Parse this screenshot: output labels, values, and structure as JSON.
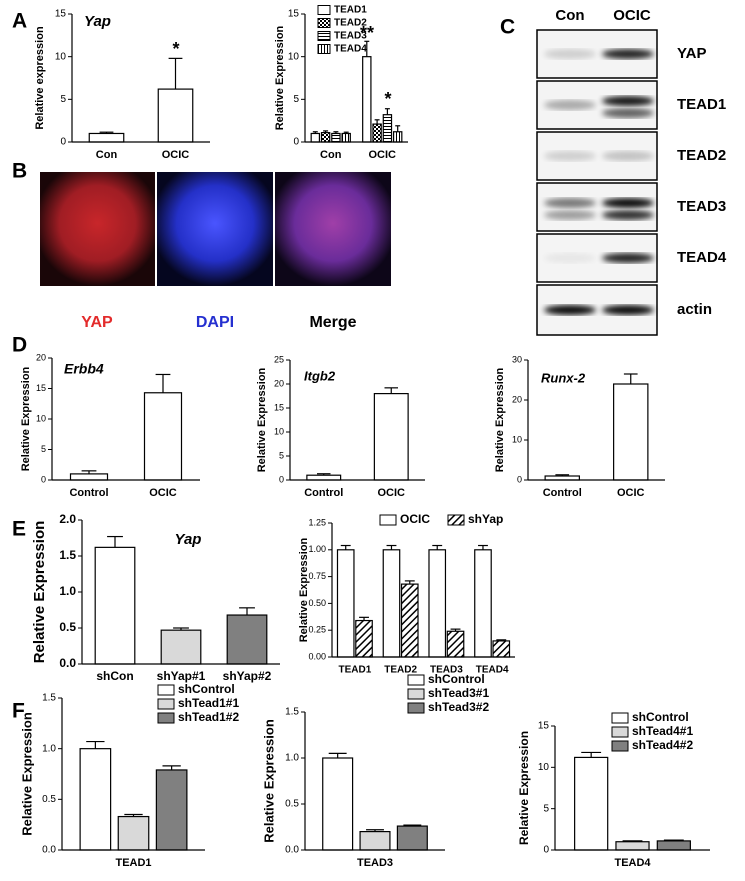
{
  "panel_labels": [
    "A",
    "B",
    "C",
    "D",
    "E",
    "F"
  ],
  "chart_data": [
    {
      "type": "bar",
      "title": "Yap",
      "ylabel": "Relative expression",
      "categories": [
        "Con",
        "OCIC"
      ],
      "values": [
        1,
        6.2
      ],
      "errors": [
        0.15,
        3.6
      ],
      "color": "#ffffff",
      "ylim": [
        0,
        15
      ],
      "yticks": [
        0,
        5,
        10,
        15
      ],
      "annotations": [
        "*"
      ]
    },
    {
      "type": "bar",
      "ylabel": "Relative Expression",
      "categories": [
        "Con",
        "OCIC"
      ],
      "series": [
        {
          "name": "TEAD1",
          "color": "#ffffff",
          "pattern": "none",
          "values": [
            1,
            10
          ],
          "errors": [
            0.2,
            1.8
          ]
        },
        {
          "name": "TEAD2",
          "color": "#ffffff",
          "pattern": "checker",
          "values": [
            1.1,
            2.1
          ],
          "errors": [
            0.2,
            0.5
          ]
        },
        {
          "name": "TEAD3",
          "color": "#ffffff",
          "pattern": "hline",
          "values": [
            1,
            3.2
          ],
          "errors": [
            0.2,
            0.7
          ]
        },
        {
          "name": "TEAD4",
          "color": "#ffffff",
          "pattern": "vline",
          "values": [
            1,
            1.2
          ],
          "errors": [
            0.15,
            0.7
          ]
        }
      ],
      "ylim": [
        0,
        15
      ],
      "yticks": [
        0,
        5,
        10,
        15
      ],
      "legend": "upper left",
      "annotations": [
        "**",
        "*"
      ]
    },
    {
      "type": "bar",
      "title": "Erbb4",
      "ylabel": "Relative Expression",
      "categories": [
        "Control",
        "OCIC"
      ],
      "values": [
        1,
        14.3
      ],
      "errors": [
        0.5,
        3
      ],
      "color": "#ffffff",
      "ylim": [
        0,
        20
      ],
      "yticks": [
        0,
        5,
        10,
        15,
        20
      ]
    },
    {
      "type": "bar",
      "title": "Itgb2",
      "ylabel": "Relative Expression",
      "categories": [
        "Control",
        "OCIC"
      ],
      "values": [
        1,
        18
      ],
      "errors": [
        0.3,
        1.2
      ],
      "color": "#ffffff",
      "ylim": [
        0,
        25
      ],
      "yticks": [
        0,
        5,
        10,
        15,
        20,
        25
      ]
    },
    {
      "type": "bar",
      "title": "Runx-2",
      "ylabel": "Relative Expression",
      "categories": [
        "Control",
        "OCIC"
      ],
      "values": [
        1,
        24
      ],
      "errors": [
        0.3,
        2.5
      ],
      "color": "#ffffff",
      "ylim": [
        0,
        30
      ],
      "yticks": [
        0,
        10,
        20,
        30
      ]
    },
    {
      "type": "bar",
      "title": "Yap",
      "ylabel": "Relative Expression",
      "categories": [
        "shCon",
        "shYap#1",
        "shYap#2"
      ],
      "values": [
        1.62,
        0.47,
        0.68
      ],
      "errors": [
        0.15,
        0.03,
        0.1
      ],
      "colors": [
        "#ffffff",
        "#d9d9d9",
        "#808080"
      ],
      "ylim": [
        0,
        2
      ],
      "yticks": [
        {
          "value": 0,
          "label": "0.0"
        },
        0.5,
        {
          "value": 1,
          "label": "1.0"
        },
        1.5,
        {
          "value": 2,
          "label": "2.0"
        }
      ]
    },
    {
      "type": "bar",
      "ylabel": "Relative Expression",
      "categories": [
        "TEAD1",
        "TEAD2",
        "TEAD3",
        "TEAD4"
      ],
      "series": [
        {
          "name": "OCIC",
          "color": "#ffffff",
          "pattern": "none",
          "values": [
            1,
            1,
            1,
            1
          ],
          "errors": [
            0.04,
            0.04,
            0.04,
            0.04
          ]
        },
        {
          "name": "shYap",
          "color": "#ffffff",
          "pattern": "diag",
          "values": [
            0.34,
            0.68,
            0.24,
            0.15
          ],
          "errors": [
            0.03,
            0.03,
            0.02,
            0.01
          ]
        }
      ],
      "ylim": [
        0,
        1.25
      ],
      "yticks": [
        {
          "value": 0,
          "label": "0.00"
        },
        0.25,
        {
          "value": 0.5,
          "label": "0.50"
        },
        0.75,
        {
          "value": 1,
          "label": "1.00"
        },
        1.25
      ],
      "legend": "upper center"
    },
    {
      "type": "bar",
      "ylabel": "Relative Expression",
      "categories": [
        "TEAD1"
      ],
      "series": [
        {
          "name": "shControl",
          "color": "#ffffff",
          "pattern": "none",
          "values": [
            1
          ],
          "errors": [
            0.07
          ]
        },
        {
          "name": "shTead1#1",
          "color": "#d9d9d9",
          "pattern": "none",
          "values": [
            0.33
          ],
          "errors": [
            0.02
          ]
        },
        {
          "name": "shTead1#2",
          "color": "#808080",
          "pattern": "none",
          "values": [
            0.79
          ],
          "errors": [
            0.04
          ]
        }
      ],
      "ylim": [
        0,
        1.5
      ],
      "yticks": [
        {
          "value": 0,
          "label": "0.0"
        },
        0.5,
        {
          "value": 1,
          "label": "1.0"
        },
        1.5
      ],
      "legend": "upper right"
    },
    {
      "type": "bar",
      "ylabel": "Relative Expression",
      "categories": [
        "TEAD3"
      ],
      "series": [
        {
          "name": "shControl",
          "color": "#ffffff",
          "pattern": "none",
          "values": [
            1
          ],
          "errors": [
            0.05
          ]
        },
        {
          "name": "shTead3#1",
          "color": "#d9d9d9",
          "pattern": "none",
          "values": [
            0.2
          ],
          "errors": [
            0.02
          ]
        },
        {
          "name": "shTead3#2",
          "color": "#808080",
          "pattern": "none",
          "values": [
            0.26
          ],
          "errors": [
            0.01
          ]
        }
      ],
      "ylim": [
        0,
        1.5
      ],
      "yticks": [
        {
          "value": 0,
          "label": "0.0"
        },
        0.5,
        {
          "value": 1,
          "label": "1.0"
        },
        1.5
      ],
      "legend": "upper right"
    },
    {
      "type": "bar",
      "ylabel": "Relative Expression",
      "categories": [
        "TEAD4"
      ],
      "series": [
        {
          "name": "shControl",
          "color": "#ffffff",
          "pattern": "none",
          "values": [
            11.2
          ],
          "errors": [
            0.6
          ]
        },
        {
          "name": "shTead4#1",
          "color": "#d9d9d9",
          "pattern": "none",
          "values": [
            1
          ],
          "errors": [
            0.1
          ]
        },
        {
          "name": "shTead4#2",
          "color": "#808080",
          "pattern": "none",
          "values": [
            1.1
          ],
          "errors": [
            0.1
          ]
        }
      ],
      "ylim": [
        0,
        15
      ],
      "yticks": [
        0,
        5,
        10,
        15
      ],
      "legend": "upper right"
    }
  ],
  "figure_b": {
    "images": [
      {
        "label": "YAP"
      },
      {
        "label": "DAPI"
      },
      {
        "label": "Merge"
      }
    ]
  },
  "figure_c": {
    "columns": [
      "Con",
      "OCIC"
    ],
    "rows": [
      "YAP",
      "TEAD1",
      "TEAD2",
      "TEAD3",
      "TEAD4",
      "actin"
    ]
  }
}
